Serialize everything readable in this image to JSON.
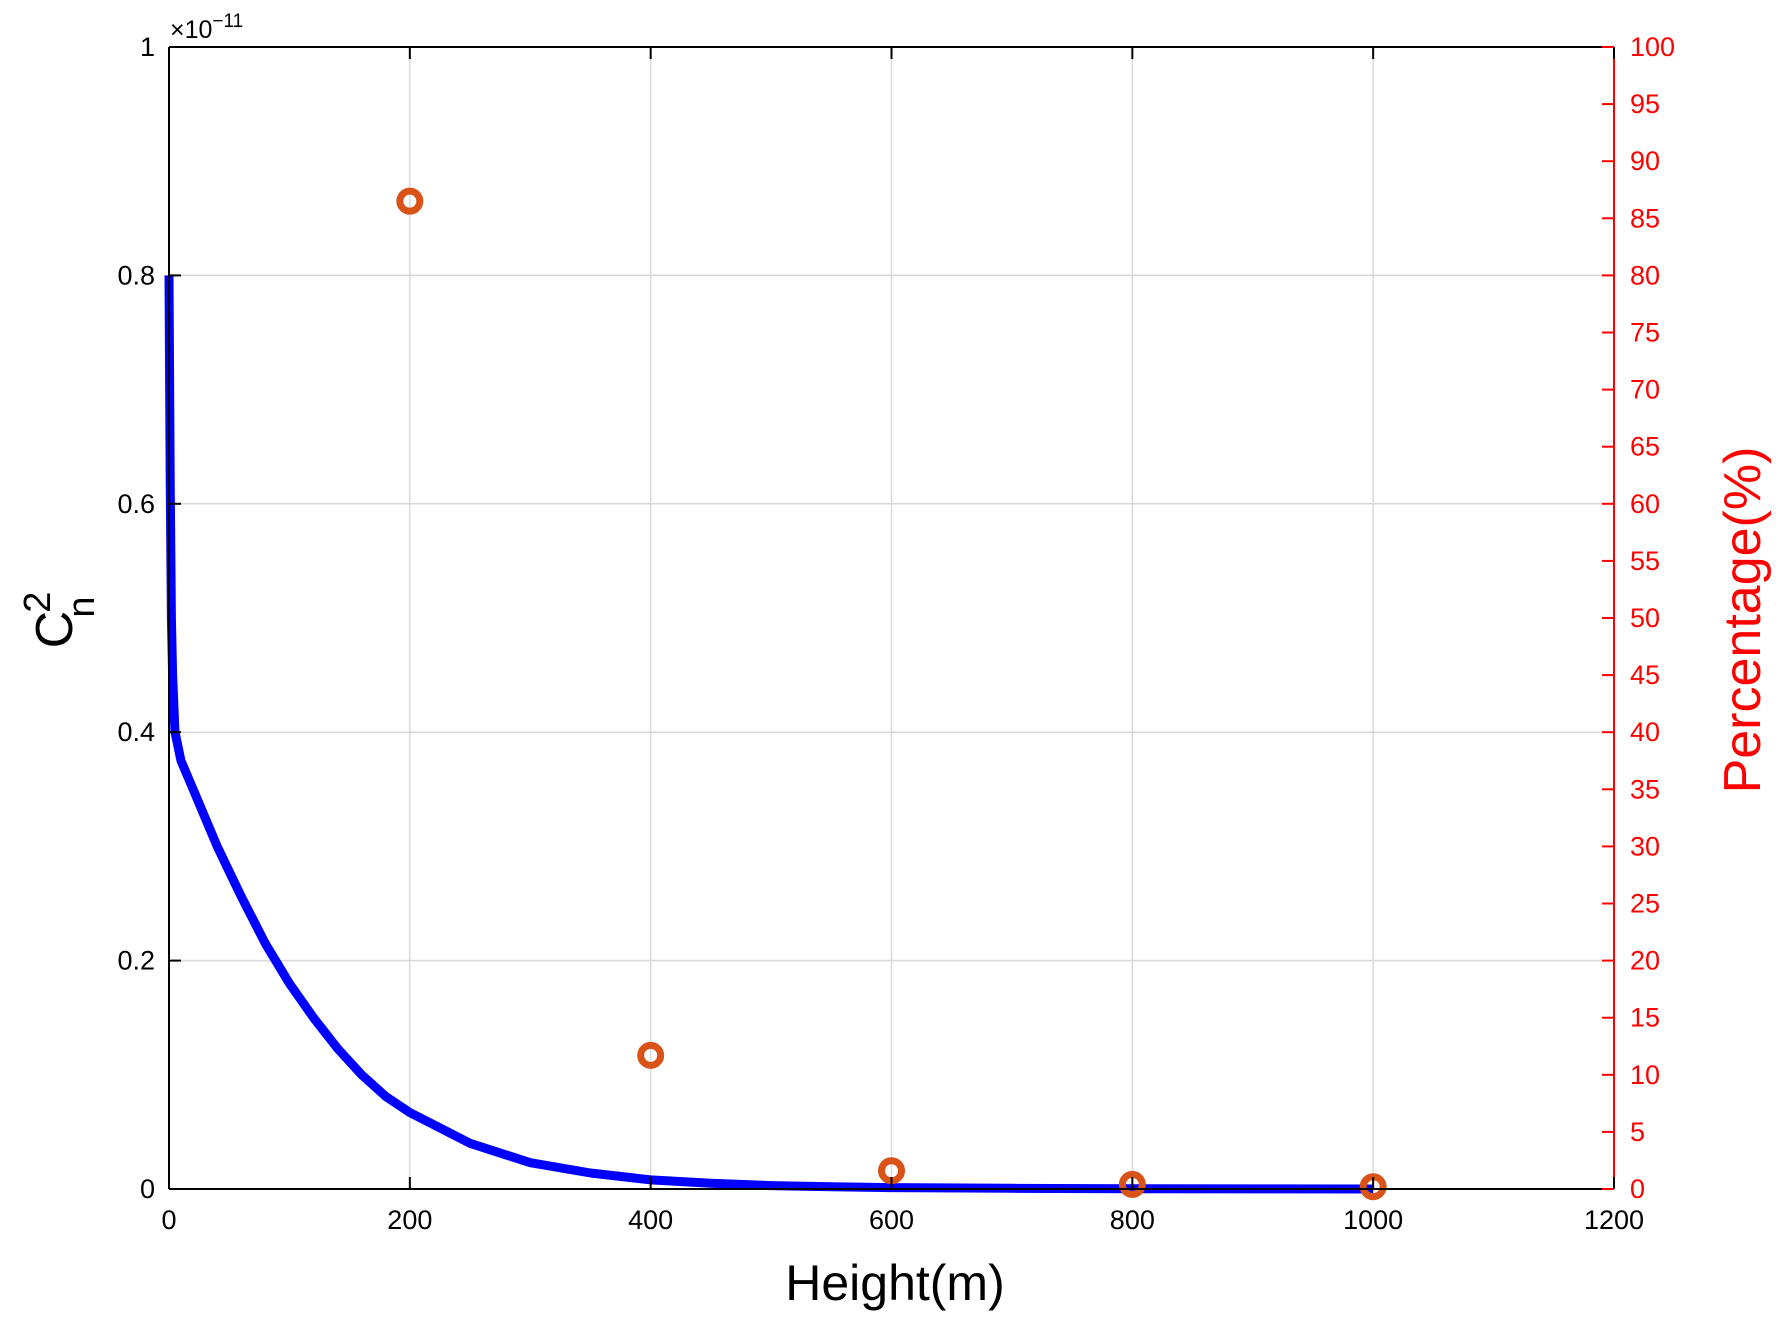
{
  "chart_data": {
    "type": "line",
    "xlabel": "Height(m)",
    "ylabel": "C",
    "ylabel_sup": "2",
    "ylabel_sub": "n",
    "y2label": "Percentage(%)",
    "y_exponent_prefix": "×10",
    "y_exponent": "−11",
    "xlim": [
      0,
      1200
    ],
    "ylim": [
      0,
      1
    ],
    "y2lim": [
      0,
      100
    ],
    "xticks": [
      "0",
      "200",
      "400",
      "600",
      "800",
      "1000",
      "1200"
    ],
    "yticks": [
      "0",
      "0.2",
      "0.4",
      "0.6",
      "0.8",
      "1"
    ],
    "y2ticks": [
      "0",
      "5",
      "10",
      "15",
      "20",
      "25",
      "30",
      "35",
      "40",
      "45",
      "50",
      "55",
      "60",
      "65",
      "70",
      "75",
      "80",
      "85",
      "90",
      "95",
      "100"
    ],
    "grid": true,
    "series": [
      {
        "kind": "line",
        "axis": "left",
        "color": "#0000ff",
        "x": [
          0,
          1,
          2,
          3,
          5,
          8,
          10,
          20,
          30,
          40,
          50,
          60,
          80,
          100,
          120,
          140,
          160,
          180,
          200,
          250,
          300,
          350,
          400,
          450,
          500,
          550,
          600,
          700,
          800,
          900,
          1000
        ],
        "y": [
          0.8,
          0.62,
          0.5,
          0.45,
          0.4,
          0.385,
          0.375,
          0.35,
          0.325,
          0.3,
          0.278,
          0.256,
          0.215,
          0.18,
          0.15,
          0.123,
          0.1,
          0.081,
          0.067,
          0.04,
          0.023,
          0.014,
          0.008,
          0.005,
          0.003,
          0.002,
          0.0012,
          0.0006,
          0.0003,
          0.0001,
          0.0
        ]
      },
      {
        "kind": "scatter",
        "axis": "right",
        "color": "#d95319",
        "x": [
          200,
          400,
          600,
          800,
          1000
        ],
        "y": [
          86.5,
          11.7,
          1.6,
          0.4,
          0.2
        ]
      }
    ]
  }
}
